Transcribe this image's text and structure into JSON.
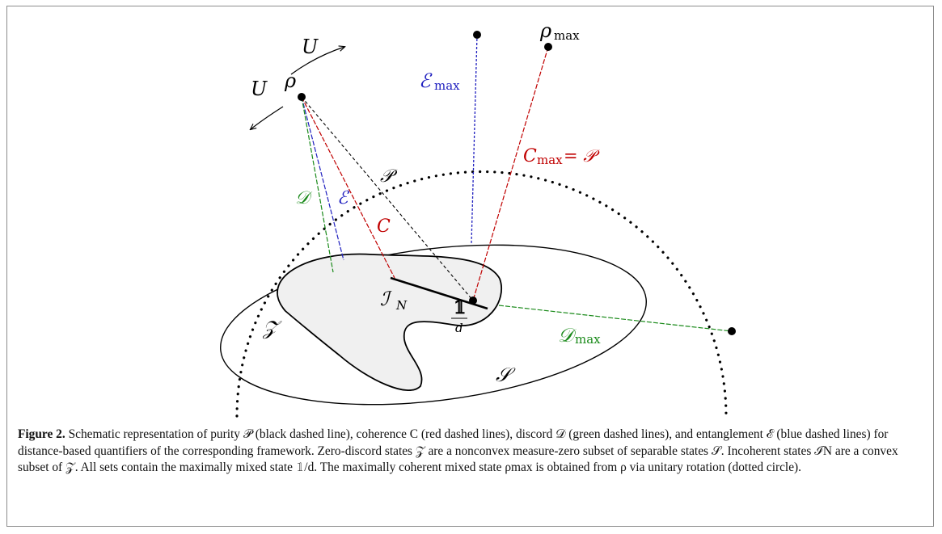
{
  "figure": {
    "labels": {
      "U_top": "U",
      "U_left": "U",
      "rho": "ρ",
      "rho_max": "ρ",
      "rho_max_sub": "max",
      "E_max": "ℰ",
      "E_max_sub": "max",
      "C_max": "C",
      "C_max_sub": "max",
      "C_max_eq": "= 𝒫",
      "P": "𝒫",
      "D": "𝒟",
      "E": "ℰ",
      "C": "C",
      "I_N": "ℐ",
      "I_N_sub": "N",
      "identity_num": "𝟙",
      "identity_den": "d",
      "D_max": "𝒟",
      "D_max_sub": "max",
      "Z": "𝒵",
      "S": "𝒮"
    },
    "colors": {
      "purity": "#000000",
      "coherence": "#c00000",
      "discord": "#1a8a1a",
      "entanglement": "#1f1fbf",
      "zero_discord_fill": "#f0f0f0"
    },
    "caption": {
      "label": "Figure 2.",
      "text": "Schematic representation of purity 𝒫 (black dashed line), coherence C (red dashed lines), discord 𝒟 (green dashed lines), and entanglement ℰ (blue dashed lines) for distance-based quantifiers of the corresponding framework. Zero-discord states 𝒵 are a nonconvex measure-zero subset of separable states 𝒮. Incoherent states ℐN are a convex subset of 𝒵. All sets contain the maximally mixed state 𝟙/d. The maximally coherent mixed state ρmax is obtained from ρ via unitary rotation (dotted circle)."
    }
  }
}
